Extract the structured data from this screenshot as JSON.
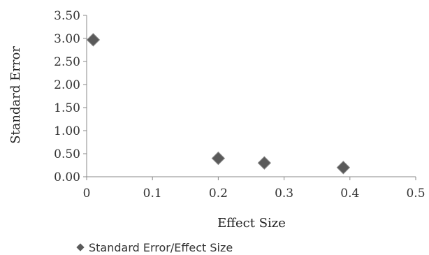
{
  "chart_data": {
    "type": "scatter",
    "title": "",
    "xlabel": "Effect Size",
    "ylabel": "Standard Error",
    "xlim": [
      0,
      0.5
    ],
    "ylim": [
      0,
      3.5
    ],
    "x_ticks": [
      "0",
      "0.1",
      "0.2",
      "0.3",
      "0.4",
      "0.5"
    ],
    "y_ticks": [
      "0.00",
      "0.50",
      "1.00",
      "1.50",
      "2.00",
      "2.50",
      "3.00",
      "3.50"
    ],
    "grid": false,
    "legend_position": "bottom-left",
    "marker": "diamond",
    "series": [
      {
        "name": "Standard Error/Effect Size",
        "color": "#5a5a5a",
        "x": [
          0.01,
          0.2,
          0.27,
          0.39
        ],
        "y": [
          2.97,
          0.4,
          0.3,
          0.2
        ]
      }
    ]
  }
}
